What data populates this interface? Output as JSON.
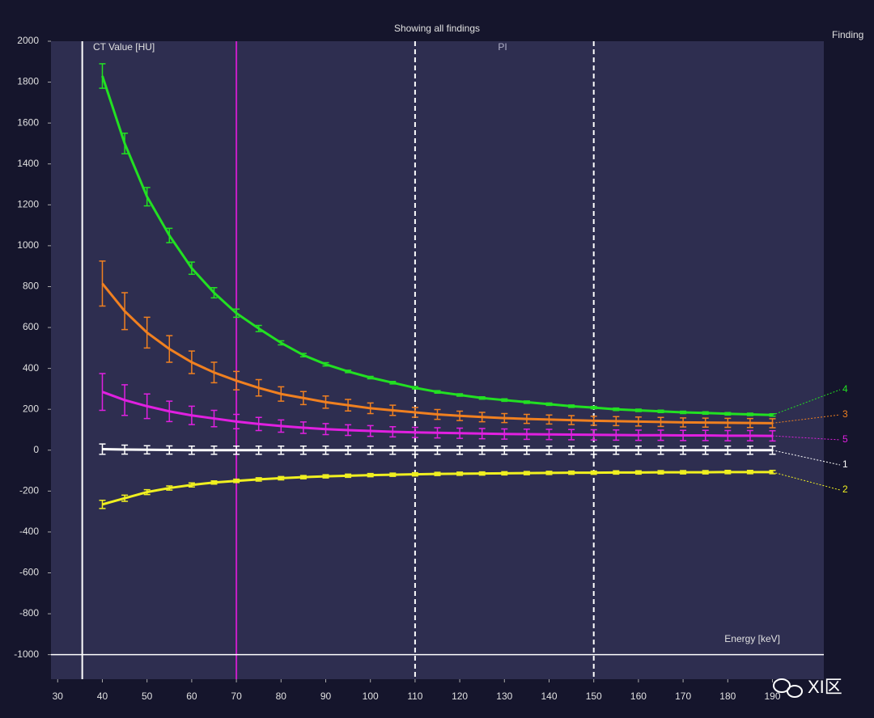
{
  "chart_data": {
    "type": "line",
    "title": "Showing all findings",
    "y_label": "CT Value [HU]",
    "x_label": "Energy [keV]",
    "region_label": "PI",
    "legend_title": "Finding",
    "watermark": "XI区",
    "xlim": [
      28.5,
      201.5
    ],
    "ylim": [
      -1120,
      2000
    ],
    "xticks": [
      30,
      40,
      50,
      60,
      70,
      80,
      90,
      100,
      110,
      120,
      130,
      140,
      150,
      160,
      170,
      180,
      190
    ],
    "yticks": [
      -1000,
      -800,
      -600,
      -400,
      -200,
      0,
      200,
      400,
      600,
      800,
      1000,
      1200,
      1400,
      1600,
      1800,
      2000
    ],
    "vlines": [
      {
        "value": 35.5,
        "color": "#ffffff",
        "style": "solid"
      },
      {
        "value": 70,
        "color": "#c81ec8",
        "style": "solid"
      },
      {
        "value": 110,
        "color": "#ffffff",
        "style": "dashed"
      },
      {
        "value": 150,
        "color": "#ffffff",
        "style": "dashed"
      }
    ],
    "hlines": [
      {
        "value": -1000,
        "color": "#ffffff",
        "style": "solid"
      }
    ],
    "x": [
      40,
      45,
      50,
      55,
      60,
      65,
      70,
      75,
      80,
      85,
      90,
      95,
      100,
      105,
      110,
      115,
      120,
      125,
      130,
      135,
      140,
      145,
      150,
      155,
      160,
      165,
      170,
      175,
      180,
      185,
      190
    ],
    "series": [
      {
        "name": "4",
        "color": "#22e022",
        "values": [
          1830,
          1500,
          1240,
          1050,
          890,
          770,
          670,
          595,
          525,
          465,
          420,
          385,
          355,
          330,
          305,
          285,
          270,
          255,
          245,
          235,
          225,
          215,
          208,
          200,
          195,
          190,
          185,
          182,
          178,
          175,
          172
        ],
        "errors": [
          60,
          50,
          45,
          35,
          30,
          25,
          20,
          15,
          10,
          8,
          8,
          6,
          6,
          6,
          6,
          6,
          6,
          6,
          6,
          6,
          6,
          6,
          6,
          6,
          6,
          6,
          6,
          6,
          6,
          6,
          6
        ]
      },
      {
        "name": "3",
        "color": "#f08020",
        "values": [
          815,
          680,
          575,
          495,
          430,
          380,
          340,
          305,
          275,
          255,
          235,
          220,
          205,
          195,
          185,
          175,
          168,
          162,
          157,
          153,
          150,
          147,
          144,
          142,
          140,
          138,
          136,
          135,
          134,
          133,
          132
        ],
        "errors": [
          110,
          90,
          75,
          65,
          55,
          50,
          45,
          40,
          35,
          32,
          30,
          28,
          26,
          25,
          24,
          24,
          23,
          23,
          22,
          22,
          22,
          22,
          22,
          22,
          22,
          22,
          22,
          22,
          22,
          22,
          22
        ]
      },
      {
        "name": "5",
        "color": "#e020e0",
        "values": [
          285,
          245,
          215,
          190,
          170,
          155,
          140,
          128,
          118,
          110,
          103,
          98,
          94,
          90,
          87,
          85,
          83,
          81,
          79,
          78,
          77,
          76,
          75,
          74,
          73,
          73,
          72,
          72,
          71,
          71,
          70
        ],
        "errors": [
          90,
          75,
          60,
          50,
          45,
          40,
          35,
          32,
          30,
          28,
          27,
          26,
          26,
          25,
          25,
          25,
          25,
          25,
          25,
          25,
          25,
          25,
          25,
          25,
          25,
          25,
          25,
          25,
          25,
          25,
          25
        ]
      },
      {
        "name": "1",
        "color": "#ffffff",
        "values": [
          5,
          3,
          2,
          1,
          0,
          0,
          0,
          0,
          0,
          0,
          0,
          0,
          0,
          0,
          0,
          0,
          0,
          0,
          0,
          0,
          0,
          0,
          0,
          0,
          0,
          0,
          0,
          0,
          0,
          0,
          0
        ],
        "errors": [
          25,
          22,
          20,
          20,
          20,
          20,
          20,
          20,
          20,
          20,
          20,
          20,
          20,
          20,
          20,
          20,
          20,
          20,
          20,
          20,
          20,
          20,
          20,
          20,
          20,
          20,
          20,
          20,
          20,
          20,
          20
        ]
      },
      {
        "name": "2",
        "color": "#f0f020",
        "values": [
          -265,
          -235,
          -205,
          -185,
          -170,
          -158,
          -150,
          -143,
          -137,
          -132,
          -128,
          -125,
          -122,
          -120,
          -118,
          -116,
          -115,
          -114,
          -113,
          -112,
          -111,
          -110,
          -110,
          -109,
          -109,
          -108,
          -108,
          -108,
          -107,
          -107,
          -107
        ],
        "errors": [
          20,
          15,
          12,
          10,
          10,
          8,
          8,
          8,
          8,
          8,
          8,
          8,
          8,
          8,
          8,
          8,
          8,
          8,
          8,
          8,
          8,
          8,
          8,
          8,
          8,
          8,
          8,
          8,
          8,
          8,
          8
        ]
      }
    ]
  }
}
